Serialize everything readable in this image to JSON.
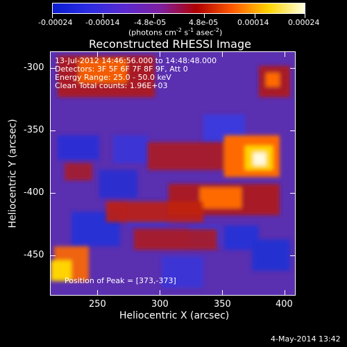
{
  "colorbar": {
    "tick_labels": [
      "-0.00024",
      "-0.00014",
      "-4.8e-05",
      "4.8e-05",
      "0.00014",
      "0.00024"
    ],
    "units_line": "(photons cm",
    "units_parts": [
      "(photons cm",
      "-2",
      " s",
      "-1",
      " asec",
      "-2",
      ")"
    ],
    "colors": [
      "#0b1ccf",
      "#2c2de3",
      "#5a2ad0",
      "#7f20a0",
      "#b00000",
      "#ff5a00",
      "#ffd400",
      "#ffffe0"
    ]
  },
  "image": {
    "title": "Reconstructed RHESSI Image",
    "overlay_lines": [
      "13-Jul-2012 14:46:56.000 to 14:48:48.000",
      "Detectors: 3F 5F 6F 7F 8F 9F, Att 0",
      "Energy Range: 25.0 - 50.0 keV",
      "Clean      Total counts: 1.96E+03"
    ],
    "peak_text": "Position of Peak = [373,-373]",
    "x_axis_label": "Heliocentric X (arcsec)",
    "y_axis_label": "Heliocentric Y (arcsec)",
    "x_ticks": [
      "250",
      "300",
      "350",
      "400"
    ],
    "y_ticks": [
      "-300",
      "-350",
      "-400",
      "-450"
    ]
  },
  "footer": {
    "timestamp": "4-May-2014 13:42"
  }
}
